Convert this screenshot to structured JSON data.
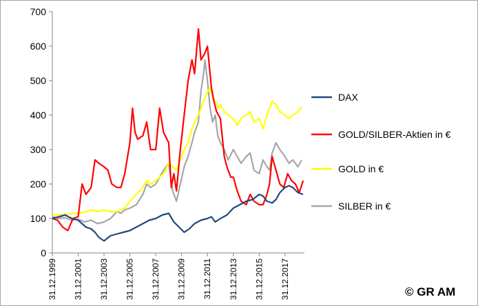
{
  "chart_data": {
    "type": "line",
    "title": "",
    "xlabel": "",
    "ylabel": "",
    "ylim": [
      0,
      700
    ],
    "yticks": [
      0,
      100,
      200,
      300,
      400,
      500,
      600,
      700
    ],
    "xlim": [
      1999.0,
      2018.5
    ],
    "xticks": [
      {
        "x": 1999.0,
        "label": "31.12.1999"
      },
      {
        "x": 2001.0,
        "label": "31.12.2001"
      },
      {
        "x": 2003.0,
        "label": "31.12.2003"
      },
      {
        "x": 2005.0,
        "label": "31.12.2005"
      },
      {
        "x": 2007.0,
        "label": "31.12.2007"
      },
      {
        "x": 2009.0,
        "label": "31.12.2009"
      },
      {
        "x": 2011.0,
        "label": "31.12.2011"
      },
      {
        "x": 2013.0,
        "label": "31.12.2013"
      },
      {
        "x": 2015.0,
        "label": "31.12.2015"
      },
      {
        "x": 2017.0,
        "label": "31.12.2017"
      }
    ],
    "legend_position": "right",
    "series": [
      {
        "name": "SILBER in €",
        "color": "#a6a6a6",
        "x": [
          1999.0,
          1999.5,
          2000.0,
          2000.5,
          2001.0,
          2001.5,
          2002.0,
          2002.5,
          2003.0,
          2003.5,
          2004.0,
          2004.3,
          2004.6,
          2005.0,
          2005.5,
          2006.0,
          2006.3,
          2006.6,
          2007.0,
          2007.3,
          2007.6,
          2008.0,
          2008.3,
          2008.6,
          2008.9,
          2009.2,
          2009.5,
          2009.8,
          2010.0,
          2010.3,
          2010.5,
          2010.7,
          2010.8,
          2011.0,
          2011.2,
          2011.4,
          2011.6,
          2011.8,
          2012.0,
          2012.3,
          2012.6,
          2013.0,
          2013.3,
          2013.6,
          2014.0,
          2014.3,
          2014.6,
          2015.0,
          2015.3,
          2015.6,
          2015.8,
          2016.0,
          2016.3,
          2016.6,
          2017.0,
          2017.3,
          2017.6,
          2018.0,
          2018.3
        ],
        "y": [
          105,
          100,
          102,
          95,
          98,
          90,
          95,
          85,
          90,
          100,
          120,
          115,
          125,
          130,
          140,
          170,
          200,
          190,
          200,
          220,
          240,
          260,
          180,
          150,
          200,
          250,
          280,
          320,
          350,
          380,
          470,
          520,
          560,
          500,
          420,
          380,
          400,
          340,
          320,
          300,
          270,
          300,
          280,
          260,
          280,
          290,
          240,
          230,
          270,
          250,
          240,
          290,
          320,
          300,
          280,
          260,
          270,
          250,
          270
        ]
      },
      {
        "name": "GOLD in €",
        "color": "#ffff00",
        "x": [
          1999.0,
          1999.5,
          2000.0,
          2000.5,
          2001.0,
          2001.5,
          2002.0,
          2002.5,
          2003.0,
          2003.5,
          2004.0,
          2004.3,
          2004.6,
          2005.0,
          2005.5,
          2006.0,
          2006.3,
          2006.6,
          2007.0,
          2007.3,
          2007.6,
          2008.0,
          2008.3,
          2008.6,
          2008.9,
          2009.2,
          2009.5,
          2009.8,
          2010.0,
          2010.3,
          2010.6,
          2010.9,
          2011.2,
          2011.4,
          2011.6,
          2011.8,
          2012.0,
          2012.3,
          2012.6,
          2013.0,
          2013.3,
          2013.6,
          2014.0,
          2014.3,
          2014.6,
          2015.0,
          2015.3,
          2015.6,
          2015.8,
          2016.0,
          2016.3,
          2016.6,
          2017.0,
          2017.3,
          2017.6,
          2018.0,
          2018.3
        ],
        "y": [
          112,
          110,
          112,
          115,
          115,
          118,
          125,
          120,
          125,
          120,
          120,
          125,
          130,
          150,
          170,
          190,
          210,
          200,
          210,
          220,
          230,
          260,
          250,
          240,
          270,
          300,
          320,
          360,
          380,
          400,
          430,
          460,
          480,
          450,
          440,
          420,
          430,
          410,
          400,
          390,
          370,
          390,
          400,
          410,
          380,
          390,
          360,
          400,
          420,
          440,
          430,
          410,
          400,
          390,
          400,
          410,
          425
        ]
      },
      {
        "name": "GOLD/SILBER-Aktien in €",
        "color": "#ff0000",
        "x": [
          1999.0,
          1999.4,
          1999.8,
          2000.2,
          2000.6,
          2001.0,
          2001.3,
          2001.6,
          2002.0,
          2002.3,
          2002.6,
          2003.0,
          2003.3,
          2003.6,
          2004.0,
          2004.3,
          2004.6,
          2005.0,
          2005.2,
          2005.4,
          2005.6,
          2006.0,
          2006.3,
          2006.6,
          2007.0,
          2007.3,
          2007.6,
          2008.0,
          2008.2,
          2008.4,
          2008.6,
          2008.9,
          2009.2,
          2009.5,
          2009.8,
          2010.0,
          2010.3,
          2010.5,
          2010.8,
          2011.0,
          2011.3,
          2011.5,
          2011.7,
          2012.0,
          2012.3,
          2012.5,
          2012.8,
          2013.0,
          2013.3,
          2013.6,
          2014.0,
          2014.3,
          2014.6,
          2015.0,
          2015.3,
          2015.6,
          2015.8,
          2016.0,
          2016.3,
          2016.6,
          2016.9,
          2017.2,
          2017.5,
          2017.8,
          2018.1,
          2018.4
        ],
        "y": [
          100,
          95,
          75,
          65,
          100,
          105,
          200,
          170,
          190,
          270,
          260,
          250,
          240,
          200,
          190,
          190,
          230,
          320,
          420,
          350,
          330,
          340,
          380,
          300,
          300,
          420,
          350,
          320,
          190,
          230,
          180,
          300,
          400,
          500,
          560,
          520,
          650,
          560,
          580,
          600,
          480,
          440,
          410,
          390,
          280,
          250,
          220,
          220,
          180,
          150,
          140,
          170,
          150,
          140,
          140,
          170,
          200,
          280,
          240,
          200,
          190,
          230,
          210,
          200,
          175,
          210
        ]
      },
      {
        "name": "DAX",
        "color": "#1f497d",
        "x": [
          1999.0,
          1999.5,
          2000.0,
          2000.5,
          2001.0,
          2001.3,
          2001.6,
          2002.0,
          2002.3,
          2002.6,
          2003.0,
          2003.5,
          2004.0,
          2004.5,
          2005.0,
          2005.5,
          2006.0,
          2006.5,
          2007.0,
          2007.5,
          2008.0,
          2008.4,
          2008.8,
          2009.2,
          2009.6,
          2010.0,
          2010.5,
          2011.0,
          2011.3,
          2011.6,
          2012.0,
          2012.5,
          2013.0,
          2013.5,
          2014.0,
          2014.5,
          2015.0,
          2015.3,
          2015.6,
          2016.0,
          2016.3,
          2016.6,
          2017.0,
          2017.3,
          2017.6,
          2018.0,
          2018.4
        ],
        "y": [
          100,
          105,
          110,
          100,
          95,
          85,
          75,
          70,
          60,
          45,
          35,
          50,
          55,
          60,
          65,
          75,
          85,
          95,
          100,
          110,
          115,
          90,
          75,
          60,
          70,
          85,
          95,
          100,
          105,
          90,
          100,
          110,
          130,
          140,
          150,
          155,
          170,
          165,
          150,
          145,
          155,
          175,
          190,
          195,
          190,
          175,
          170
        ]
      }
    ]
  },
  "legend": {
    "entries": [
      {
        "label": "DAX",
        "color": "#1f497d"
      },
      {
        "label": "GOLD/SILBER-Aktien in €",
        "color": "#ff0000"
      },
      {
        "label": "GOLD in €",
        "color": "#ffff00"
      },
      {
        "label": "SILBER in €",
        "color": "#a6a6a6"
      }
    ]
  },
  "footer": {
    "copyright": "© GR AM"
  }
}
